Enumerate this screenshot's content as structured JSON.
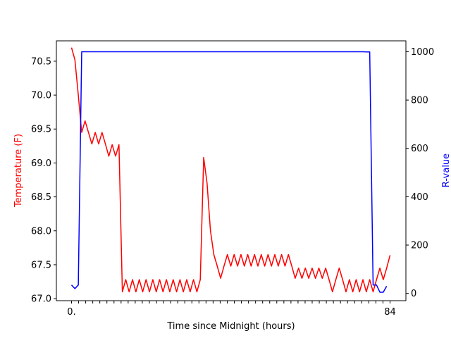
{
  "chart_data": {
    "type": "line",
    "title": "",
    "xlabel": "Time since Midnight (hours)",
    "ylabel_left": "Temperature (F)",
    "ylabel_right": "R-value",
    "left_ylim": [
      66.97,
      70.8
    ],
    "right_ylim": [
      -30,
      1045
    ],
    "left_yticks": [
      "67.0",
      "67.5",
      "68.0",
      "68.5",
      "69.0",
      "69.5",
      "70.0",
      "70.5"
    ],
    "right_yticks": [
      "0",
      "200",
      "400",
      "600",
      "800",
      "1000"
    ],
    "x_first_label": "0.",
    "x_last_label": "84",
    "x_tick_count": 46,
    "grid": false,
    "colors": {
      "temperature": "#ff0000",
      "rvalue": "#0000ff",
      "axes": "#000000"
    },
    "series": [
      {
        "axis": "left",
        "color": "#ff0000",
        "values": [
          70.7,
          70.52,
          70.0,
          69.45,
          69.62,
          69.45,
          69.28,
          69.45,
          69.28,
          69.45,
          69.28,
          69.1,
          69.27,
          69.1,
          69.27,
          67.1,
          67.28,
          67.1,
          67.28,
          67.1,
          67.28,
          67.1,
          67.28,
          67.1,
          67.28,
          67.1,
          67.28,
          67.1,
          67.28,
          67.1,
          67.28,
          67.1,
          67.28,
          67.1,
          67.28,
          67.1,
          67.28,
          67.1,
          67.28,
          69.08,
          68.7,
          68.0,
          67.65,
          67.48,
          67.3,
          67.48,
          67.65,
          67.48,
          67.65,
          67.48,
          67.65,
          67.48,
          67.65,
          67.48,
          67.65,
          67.48,
          67.65,
          67.48,
          67.65,
          67.48,
          67.65,
          67.48,
          67.65,
          67.48,
          67.65,
          67.48,
          67.3,
          67.45,
          67.3,
          67.45,
          67.3,
          67.45,
          67.3,
          67.45,
          67.3,
          67.45,
          67.28,
          67.1,
          67.28,
          67.45,
          67.28,
          67.1,
          67.28,
          67.1,
          67.28,
          67.1,
          67.28,
          67.1,
          67.28,
          67.1,
          67.28,
          67.45,
          67.28,
          67.45,
          67.64
        ]
      },
      {
        "axis": "right",
        "color": "#0000ff",
        "values": [
          35,
          20,
          35,
          1000,
          1000,
          1000,
          1000,
          1000,
          1000,
          1000,
          1000,
          1000,
          1000,
          1000,
          1000,
          1000,
          1000,
          1000,
          1000,
          1000,
          1000,
          1000,
          1000,
          1000,
          1000,
          1000,
          1000,
          1000,
          1000,
          1000,
          1000,
          1000,
          1000,
          1000,
          1000,
          1000,
          1000,
          1000,
          1000,
          1000,
          1000,
          1000,
          1000,
          1000,
          1000,
          1000,
          1000,
          1000,
          1000,
          1000,
          1000,
          1000,
          1000,
          1000,
          1000,
          1000,
          1000,
          1000,
          1000,
          1000,
          1000,
          1000,
          1000,
          1000,
          1000,
          1000,
          1000,
          1000,
          1000,
          1000,
          1000,
          1000,
          1000,
          1000,
          1000,
          1000,
          1000,
          1000,
          1000,
          1000,
          1000,
          1000,
          1000,
          1000,
          1000,
          1000,
          1000,
          999,
          999,
          35,
          35,
          5,
          5,
          30
        ]
      }
    ]
  }
}
